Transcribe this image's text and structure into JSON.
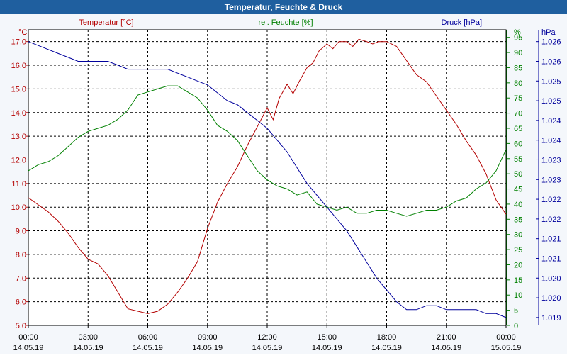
{
  "window": {
    "title": "Temperatur, Feuchte & Druck"
  },
  "colors": {
    "temperature": "#b40000",
    "humidity": "#008000",
    "pressure": "#00009c",
    "grid": "#000000"
  },
  "chart_data": {
    "type": "line",
    "title": "Temperatur, Feuchte & Druck",
    "x_hours": [
      0,
      24
    ],
    "x_ticks": [
      {
        "hour": 0,
        "time": "00:00",
        "date": "14.05.19"
      },
      {
        "hour": 3,
        "time": "03:00",
        "date": "14.05.19"
      },
      {
        "hour": 6,
        "time": "06:00",
        "date": "14.05.19"
      },
      {
        "hour": 9,
        "time": "09:00",
        "date": "14.05.19"
      },
      {
        "hour": 12,
        "time": "12:00",
        "date": "14.05.19"
      },
      {
        "hour": 15,
        "time": "15:00",
        "date": "14.05.19"
      },
      {
        "hour": 18,
        "time": "18:00",
        "date": "14.05.19"
      },
      {
        "hour": 21,
        "time": "21:00",
        "date": "14.05.19"
      },
      {
        "hour": 24,
        "time": "00:00",
        "date": "15.05.19"
      }
    ],
    "axes": {
      "temperature": {
        "unit": "°C",
        "legend": "Temperatur [°C]",
        "ylim": [
          5,
          17.5
        ],
        "ticks": [
          "5,0",
          "6,0",
          "7,0",
          "8,0",
          "9,0",
          "10,0",
          "11,0",
          "12,0",
          "13,0",
          "14,0",
          "15,0",
          "16,0",
          "17,0"
        ]
      },
      "humidity": {
        "unit": "%",
        "legend": "rel. Feuchte [%]",
        "ylim": [
          0,
          97.5
        ],
        "ticks": [
          "0",
          "5",
          "10",
          "15",
          "20",
          "25",
          "30",
          "35",
          "40",
          "45",
          "50",
          "55",
          "60",
          "65",
          "70",
          "75",
          "80",
          "85",
          "90",
          "95"
        ]
      },
      "pressure": {
        "unit": "hPa",
        "legend": "Druck [hPa]",
        "ylim": [
          1018.8,
          1026.3
        ],
        "ticks": [
          {
            "v": 1019.0,
            "label": "1.019"
          },
          {
            "v": 1019.5,
            "label": "1.020"
          },
          {
            "v": 1020.0,
            "label": "1.020"
          },
          {
            "v": 1020.5,
            "label": "1.021"
          },
          {
            "v": 1021.0,
            "label": "1.021"
          },
          {
            "v": 1021.5,
            "label": "1.022"
          },
          {
            "v": 1022.0,
            "label": "1.022"
          },
          {
            "v": 1022.5,
            "label": "1.023"
          },
          {
            "v": 1023.0,
            "label": "1.023"
          },
          {
            "v": 1023.5,
            "label": "1.024"
          },
          {
            "v": 1024.0,
            "label": "1.024"
          },
          {
            "v": 1024.5,
            "label": "1.025"
          },
          {
            "v": 1025.0,
            "label": "1.025"
          },
          {
            "v": 1025.5,
            "label": "1.026"
          },
          {
            "v": 1026.0,
            "label": "1.026"
          }
        ]
      }
    },
    "series": [
      {
        "name": "Temperatur [°C]",
        "axis": "temperature",
        "x": [
          0,
          0.5,
          1,
          1.5,
          2,
          2.5,
          3,
          3.5,
          4,
          4.5,
          5,
          5.5,
          6,
          6.5,
          7,
          7.5,
          8,
          8.5,
          9,
          9.5,
          10,
          10.5,
          11,
          11.5,
          12,
          12.3,
          12.6,
          13,
          13.3,
          13.6,
          14,
          14.3,
          14.6,
          15,
          15.3,
          15.6,
          16,
          16.3,
          16.6,
          17,
          17.3,
          17.6,
          18,
          18.5,
          19,
          19.5,
          20,
          20.5,
          21,
          21.5,
          22,
          22.5,
          23,
          23.5,
          24
        ],
        "values": [
          10.4,
          10.1,
          9.8,
          9.4,
          8.9,
          8.3,
          7.8,
          7.6,
          7.1,
          6.4,
          5.7,
          5.6,
          5.5,
          5.6,
          5.9,
          6.4,
          7.0,
          7.7,
          9.1,
          10.2,
          11.0,
          11.7,
          12.6,
          13.4,
          14.2,
          13.7,
          14.6,
          15.2,
          14.8,
          15.3,
          15.9,
          16.1,
          16.6,
          16.9,
          16.7,
          17.0,
          17.0,
          16.8,
          17.1,
          17.0,
          16.9,
          17.0,
          17.0,
          16.8,
          16.2,
          15.6,
          15.3,
          14.7,
          14.1,
          13.5,
          12.8,
          12.2,
          11.4,
          10.3,
          9.7
        ]
      },
      {
        "name": "rel. Feuchte [%]",
        "axis": "humidity",
        "x": [
          0,
          0.5,
          1,
          1.5,
          2,
          2.5,
          3,
          3.5,
          4,
          4.5,
          5,
          5.5,
          6,
          6.5,
          7,
          7.5,
          8,
          8.5,
          9,
          9.5,
          10,
          10.5,
          11,
          11.5,
          12,
          12.5,
          13,
          13.5,
          14,
          14.5,
          15,
          15.5,
          16,
          16.5,
          17,
          17.5,
          18,
          18.5,
          19,
          19.5,
          20,
          20.5,
          21,
          21.5,
          22,
          22.5,
          23,
          23.5,
          24
        ],
        "values": [
          51,
          53,
          54,
          56,
          59,
          62,
          64,
          65,
          66,
          68,
          71,
          76,
          77,
          78,
          79,
          79,
          77,
          75,
          71,
          66,
          64,
          61,
          56,
          51,
          48,
          46,
          45,
          43,
          44,
          40,
          39,
          38,
          39,
          37,
          37,
          38,
          38,
          37,
          36,
          37,
          38,
          38,
          39,
          41,
          42,
          45,
          47,
          51,
          58
        ]
      },
      {
        "name": "Druck [hPa]",
        "axis": "pressure",
        "x": [
          0,
          0.5,
          1,
          1.5,
          2,
          2.5,
          3,
          3.5,
          4,
          4.5,
          5,
          5.5,
          6,
          6.5,
          7,
          7.5,
          8,
          8.5,
          9,
          9.5,
          10,
          10.5,
          11,
          11.5,
          12,
          12.5,
          13,
          13.5,
          14,
          14.5,
          15,
          15.5,
          16,
          16.5,
          17,
          17.5,
          18,
          18.5,
          19,
          19.5,
          20,
          20.5,
          21,
          21.5,
          22,
          22.5,
          23,
          23.5,
          24
        ],
        "values": [
          1026.0,
          1025.9,
          1025.8,
          1025.7,
          1025.6,
          1025.5,
          1025.5,
          1025.5,
          1025.5,
          1025.4,
          1025.3,
          1025.3,
          1025.3,
          1025.3,
          1025.3,
          1025.2,
          1025.1,
          1025.0,
          1024.9,
          1024.7,
          1024.5,
          1024.4,
          1024.2,
          1024.0,
          1023.8,
          1023.5,
          1023.2,
          1022.8,
          1022.4,
          1022.1,
          1021.8,
          1021.5,
          1021.2,
          1020.8,
          1020.4,
          1020.0,
          1019.7,
          1019.4,
          1019.2,
          1019.2,
          1019.3,
          1019.3,
          1019.2,
          1019.2,
          1019.2,
          1019.2,
          1019.1,
          1019.1,
          1019.0
        ]
      }
    ]
  }
}
